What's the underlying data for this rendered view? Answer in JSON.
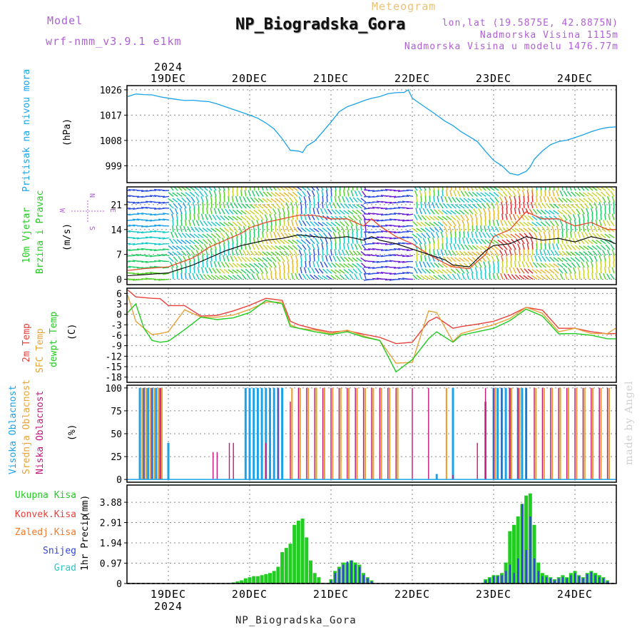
{
  "header": {
    "model_label": "Model",
    "model_name": "wrf-nmm_v3.9.1 e1km",
    "title": "NP_Biogradska_Gora",
    "subtitle": "Meteogram",
    "coords": "lon,lat (19.5875E, 42.8875N)",
    "altitude": "Nadmorska Visina 1115m",
    "model_altitude": "Nadmorska Visina u modelu 1476.77m"
  },
  "footer": {
    "location": "NP_Biogradska_Gora",
    "credit": "made by Angel"
  },
  "colors": {
    "pressure": "#1aa3e8",
    "temp2m": "#e8403a",
    "sfc": "#e8a23a",
    "dew": "#22cc22",
    "high": "#1aa3e8",
    "mid": "#e8a23a",
    "low": "#c2187a",
    "total": "#22cc22",
    "conv": "#e8403a",
    "frozen": "#f07a2a",
    "snow": "#3344dd",
    "hail": "#2ec4c4",
    "violet": "#b05fd6",
    "grid": "#888888"
  },
  "chart_data": [
    {
      "type": "line",
      "panel": "pressure",
      "x_ticks_top": [
        "19DEC",
        "20DEC",
        "21DEC",
        "22DEC",
        "23DEC",
        "24DEC"
      ],
      "year_label": "2024",
      "ylabel": "Pritisak na nivou mora",
      "unit": "(hPa)",
      "yticks": [
        999,
        1008,
        1017,
        1026
      ],
      "ylim": [
        993,
        1027.5
      ],
      "x": [
        -0.5,
        -0.4,
        -0.3,
        -0.2,
        -0.1,
        0,
        0.1,
        0.2,
        0.3,
        0.4,
        0.5,
        0.6,
        0.7,
        0.8,
        0.9,
        1.0,
        1.1,
        1.2,
        1.3,
        1.4,
        1.5,
        1.6,
        1.65,
        1.7,
        1.8,
        1.9,
        2.0,
        2.1,
        2.2,
        2.3,
        2.4,
        2.5,
        2.6,
        2.7,
        2.8,
        2.9,
        2.95,
        3.0,
        3.1,
        3.2,
        3.3,
        3.4,
        3.5,
        3.6,
        3.7,
        3.8,
        3.9,
        4.0,
        4.1,
        4.2,
        4.3,
        4.4,
        4.45,
        4.5,
        4.6,
        4.7,
        4.8,
        4.9,
        5.0,
        5.1,
        5.2,
        5.3,
        5.4,
        5.5
      ],
      "series": [
        {
          "values": [
            1023.6,
            1024.5,
            1024.3,
            1024.2,
            1023.5,
            1023.0,
            1022.6,
            1022.2,
            1022.3,
            1022.0,
            1021.8,
            1021.0,
            1020.0,
            1019.0,
            1018.0,
            1017.0,
            1015.9,
            1014.2,
            1012.1,
            1008.6,
            1004.5,
            1004.2,
            1003.7,
            1006.0,
            1007.8,
            1011.1,
            1014.5,
            1018.2,
            1020.0,
            1021.0,
            1022.1,
            1023.0,
            1023.6,
            1024.6,
            1025.0,
            1025.1,
            1026.0,
            1023.0,
            1021.0,
            1019.0,
            1017.0,
            1014.9,
            1013.3,
            1011.1,
            1009.4,
            1007.6,
            1004.1,
            1000.9,
            999.0,
            996.3,
            995.7,
            997.0,
            998.6,
            1001.3,
            1004.3,
            1006.5,
            1007.6,
            1008.1,
            1009.0,
            1010.0,
            1011.1,
            1012.0,
            1012.6,
            1012.8
          ]
        }
      ]
    },
    {
      "type": "line",
      "panel": "wind",
      "ylabel": "10m Vjetar",
      "ylabel2": "Brzina i Pravac",
      "unit": "(m/s)",
      "direction_legend": [
        "N",
        "E",
        "S",
        "W"
      ],
      "yticks": [
        0,
        7,
        14,
        21
      ],
      "ylim": [
        -1.5,
        26
      ],
      "x": [
        -0.5,
        -0.3,
        0,
        0.3,
        0.5,
        0.7,
        0.9,
        1.0,
        1.2,
        1.4,
        1.6,
        1.8,
        2.0,
        2.2,
        2.4,
        2.5,
        2.6,
        2.8,
        3.0,
        3.2,
        3.4,
        3.5,
        3.7,
        3.9,
        4.0,
        4.2,
        4.4,
        4.6,
        4.8,
        5.0,
        5.2,
        5.4,
        5.5
      ],
      "series": [
        {
          "name": "speed",
          "values": [
            1,
            1.3,
            1.8,
            4,
            6,
            8,
            9.5,
            10,
            11,
            11.5,
            12.5,
            12,
            11.5,
            12,
            11,
            12,
            11,
            10,
            8.5,
            7,
            5.5,
            4,
            3.5,
            8,
            9.5,
            10,
            12,
            11,
            11.5,
            10.5,
            12,
            11,
            10
          ]
        },
        {
          "name": "gust",
          "values": [
            2.5,
            3,
            3.5,
            6,
            9,
            11,
            13,
            14.5,
            16,
            17,
            18,
            18,
            17,
            17,
            15,
            17,
            15,
            12,
            10,
            7,
            4.5,
            3.5,
            3,
            7,
            12,
            14,
            19,
            17,
            17,
            15,
            16,
            14,
            14
          ]
        }
      ]
    },
    {
      "type": "line",
      "panel": "temperature",
      "labels": [
        "2m Temp",
        "SFC Temp",
        "dewpt Temp"
      ],
      "unit": "(C)",
      "yticks": [
        6,
        3,
        0,
        -3,
        -6,
        -9,
        -12,
        -15,
        -18
      ],
      "ylim": [
        -19.5,
        7.5
      ],
      "x": [
        -0.5,
        -0.4,
        -0.3,
        -0.2,
        -0.1,
        0,
        0.2,
        0.4,
        0.6,
        0.8,
        1.0,
        1.2,
        1.4,
        1.5,
        1.6,
        1.8,
        2.0,
        2.2,
        2.4,
        2.6,
        2.8,
        3.0,
        3.2,
        3.3,
        3.5,
        3.6,
        3.8,
        4.0,
        4.2,
        4.4,
        4.6,
        4.8,
        5.0,
        5.2,
        5.4,
        5.5
      ],
      "series": [
        {
          "name": "2m Temp",
          "values": [
            7,
            5,
            4.8,
            4.6,
            4.5,
            2.5,
            2.5,
            -0.5,
            -0.3,
            1,
            2.6,
            4.6,
            4,
            -2,
            -3,
            -4.2,
            -5.1,
            -4.7,
            -5.7,
            -6.6,
            -8.4,
            -8,
            -2,
            -0.8,
            -4,
            -3.5,
            -2.8,
            -2,
            -0.3,
            2,
            1.2,
            -4,
            -4,
            -5,
            -5.6,
            -5.5
          ]
        },
        {
          "name": "SFC Temp",
          "values": [
            5.5,
            -2,
            -4,
            -5.8,
            -5.5,
            -5,
            1.3,
            -0.8,
            -0.8,
            -0.2,
            1.4,
            3.5,
            3.5,
            -3,
            -4,
            -4.5,
            -5.5,
            -4.5,
            -6.2,
            -7.5,
            -14,
            -13.8,
            1,
            0.5,
            -7.8,
            -5.5,
            -4.2,
            -3,
            -1.2,
            2,
            0.3,
            -5,
            -4,
            -5.5,
            -5.5,
            -4
          ]
        },
        {
          "name": "dewpt Temp",
          "values": [
            0.5,
            3,
            -4,
            -7.5,
            -8,
            -7.7,
            -4.4,
            -0.8,
            -1.5,
            -1,
            0.5,
            4,
            3,
            -3.5,
            -4,
            -5,
            -5.8,
            -5,
            -6.5,
            -7.5,
            -16.5,
            -13,
            -7,
            -5,
            -8,
            -6,
            -5,
            -4,
            -1.8,
            1.5,
            -0.5,
            -5.6,
            -5.5,
            -6,
            -7,
            -7
          ]
        }
      ]
    },
    {
      "type": "bar",
      "panel": "clouds",
      "labels": [
        "Visoka Oblacnost",
        "Srednja Oblacnost",
        "Niska Oblacnost"
      ],
      "unit": "(%)",
      "yticks": [
        0,
        25,
        50,
        75,
        100
      ],
      "ylim": [
        -3,
        103
      ],
      "series": [
        {
          "name": "Visoka Oblacnost",
          "x": [
            -0.35,
            -0.3,
            -0.25,
            -0.2,
            -0.15,
            -0.1,
            0.0,
            0.95,
            1.0,
            1.05,
            1.1,
            1.15,
            1.2,
            1.25,
            1.3,
            1.35,
            1.4,
            3.3,
            3.5,
            3.9,
            4.0,
            4.05,
            4.1,
            4.15,
            4.2,
            4.3,
            4.35,
            4.4
          ],
          "values": [
            100,
            100,
            100,
            100,
            100,
            100,
            40,
            100,
            100,
            100,
            100,
            100,
            100,
            100,
            100,
            100,
            100,
            6,
            100,
            85,
            100,
            100,
            100,
            100,
            100,
            100,
            100,
            100
          ]
        },
        {
          "name": "Srednja Oblacnost",
          "x": [
            -0.32,
            -0.27,
            -0.22,
            -0.17,
            -0.12,
            -0.08,
            1.52,
            1.62,
            1.72,
            1.82,
            1.92,
            2.02,
            2.12,
            2.22,
            2.32,
            2.42,
            2.52,
            2.62,
            2.72,
            2.82,
            3.42,
            4.02,
            4.22,
            4.32,
            4.52,
            4.62,
            4.72,
            4.82,
            4.92,
            5.02,
            5.12,
            5.22,
            5.32,
            5.42,
            5.52
          ],
          "values": [
            100,
            100,
            100,
            100,
            100,
            100,
            100,
            100,
            100,
            100,
            100,
            100,
            100,
            100,
            100,
            100,
            100,
            100,
            100,
            100,
            100,
            100,
            100,
            100,
            100,
            100,
            100,
            100,
            100,
            100,
            100,
            100,
            100,
            100,
            100
          ]
        },
        {
          "name": "Niska Oblacnost",
          "x": [
            -0.3,
            -0.2,
            -0.1,
            0.55,
            0.6,
            0.75,
            0.8,
            1.2,
            1.35,
            1.5,
            1.6,
            1.7,
            1.8,
            1.9,
            2.0,
            2.1,
            2.2,
            2.3,
            2.4,
            2.5,
            2.6,
            2.7,
            2.8,
            3.0,
            3.2,
            3.5,
            3.8,
            3.9,
            4.0,
            4.1,
            4.2,
            4.3,
            4.4,
            4.5,
            4.6,
            4.7,
            4.8,
            4.9,
            5.0,
            5.1,
            5.2,
            5.3,
            5.4
          ],
          "values": [
            100,
            100,
            100,
            30,
            30,
            40,
            40,
            40,
            100,
            85,
            100,
            100,
            100,
            100,
            100,
            100,
            100,
            100,
            100,
            100,
            100,
            100,
            100,
            100,
            100,
            5,
            40,
            100,
            100,
            100,
            100,
            100,
            100,
            100,
            100,
            100,
            100,
            100,
            100,
            100,
            100,
            100,
            100
          ]
        }
      ]
    },
    {
      "type": "bar",
      "panel": "precipitation",
      "labels": [
        "Ukupna Kisa",
        "Konvek.Kisa",
        "Zaledj.Kisa",
        "Snijeg",
        "Grad"
      ],
      "ylabel": "1hr Precip",
      "unit": "(mm)",
      "yticks": [
        0,
        0.97,
        1.94,
        2.91,
        3.88
      ],
      "ylim": [
        0,
        4.7
      ],
      "x_ticks_bottom": [
        "19DEC",
        "20DEC",
        "21DEC",
        "22DEC",
        "23DEC",
        "24DEC"
      ],
      "year_label": "2024",
      "x": [
        0.8,
        0.85,
        0.9,
        0.95,
        1.0,
        1.05,
        1.1,
        1.15,
        1.2,
        1.25,
        1.3,
        1.35,
        1.4,
        1.45,
        1.5,
        1.55,
        1.6,
        1.65,
        1.7,
        1.75,
        1.8,
        1.85,
        2.0,
        2.05,
        2.1,
        2.15,
        2.2,
        2.25,
        2.3,
        2.35,
        2.4,
        2.45,
        2.5,
        3.9,
        3.95,
        4.0,
        4.05,
        4.1,
        4.15,
        4.2,
        4.25,
        4.3,
        4.35,
        4.4,
        4.45,
        4.5,
        4.55,
        4.6,
        4.65,
        4.7,
        4.75,
        4.8,
        4.85,
        4.9,
        4.95,
        5.0,
        5.05,
        5.1,
        5.15,
        5.2,
        5.25,
        5.3,
        5.35,
        5.4
      ],
      "series": [
        {
          "name": "Ukupna Kisa",
          "values": [
            0.05,
            0.1,
            0.15,
            0.25,
            0.3,
            0.35,
            0.35,
            0.4,
            0.45,
            0.5,
            0.6,
            0.8,
            1.5,
            1.7,
            1.9,
            2.8,
            3.0,
            3.1,
            2.2,
            1.1,
            0.5,
            0.3,
            0.2,
            0.6,
            0.8,
            1.0,
            1.0,
            1.1,
            1.0,
            0.9,
            0.5,
            0.3,
            0.15,
            0.2,
            0.3,
            0.4,
            0.4,
            0.5,
            1.0,
            2.5,
            2.8,
            3.2,
            3.8,
            4.2,
            4.3,
            2.8,
            1.0,
            0.5,
            0.4,
            0.3,
            0.2,
            0.3,
            0.4,
            0.3,
            0.5,
            0.6,
            0.4,
            0.3,
            0.5,
            0.6,
            0.5,
            0.4,
            0.3,
            0.15
          ]
        },
        {
          "name": "Snijeg",
          "values": [
            0,
            0,
            0,
            0,
            0,
            0,
            0,
            0,
            0,
            0,
            0,
            0,
            0,
            0,
            0,
            0,
            0,
            0,
            0,
            0,
            0,
            0,
            0.15,
            0.5,
            0.7,
            0.9,
            1.05,
            1.1,
            0.9,
            0.8,
            0.4,
            0.25,
            0.1,
            0.15,
            0.25,
            0.35,
            0.35,
            0.4,
            0.6,
            0.9,
            0.5,
            1.2,
            3.8,
            1.6,
            3.2,
            1.2,
            0.6,
            0.35,
            0.3,
            0.25,
            0.15,
            0.25,
            0.3,
            0.25,
            0.4,
            0.5,
            0.35,
            0.25,
            0.45,
            0.55,
            0.4,
            0.3,
            0.25,
            0.1
          ]
        }
      ]
    }
  ]
}
